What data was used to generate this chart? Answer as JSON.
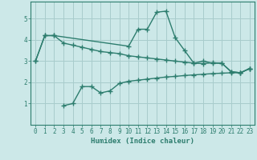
{
  "line1": {
    "x": [
      0,
      1,
      2,
      3,
      4,
      5,
      6,
      7,
      8,
      9,
      10,
      11,
      12,
      13,
      14,
      15,
      16,
      17,
      18,
      19,
      20,
      21,
      22,
      23
    ],
    "y": [
      3.0,
      4.2,
      4.2,
      3.85,
      3.75,
      3.65,
      3.55,
      3.45,
      3.4,
      3.35,
      3.25,
      3.2,
      3.15,
      3.1,
      3.05,
      3.0,
      2.95,
      2.9,
      2.88,
      2.92,
      2.9,
      2.5,
      2.45,
      2.65
    ]
  },
  "line2": {
    "x": [
      0,
      1,
      2,
      10,
      11,
      12,
      13,
      14,
      15,
      16,
      17,
      18,
      19,
      20,
      21,
      22,
      23
    ],
    "y": [
      3.0,
      4.2,
      4.2,
      3.7,
      4.5,
      4.5,
      5.3,
      5.35,
      4.1,
      3.5,
      2.9,
      3.0,
      2.9,
      2.9,
      2.5,
      2.45,
      2.65
    ]
  },
  "line3": {
    "x": [
      3,
      4,
      5,
      6,
      7,
      8,
      9,
      10,
      11,
      12,
      13,
      14,
      15,
      16,
      17,
      18,
      19,
      20,
      21,
      22,
      23
    ],
    "y": [
      0.9,
      1.0,
      1.8,
      1.8,
      1.5,
      1.6,
      1.95,
      2.05,
      2.1,
      2.15,
      2.2,
      2.25,
      2.28,
      2.32,
      2.35,
      2.38,
      2.41,
      2.43,
      2.45,
      2.45,
      2.65
    ]
  },
  "color": "#2d7d6e",
  "bg_color": "#cce8e8",
  "grid_color": "#a8cccc",
  "xlabel": "Humidex (Indice chaleur)",
  "xlim": [
    -0.5,
    23.5
  ],
  "ylim": [
    0,
    5.8
  ],
  "yticks": [
    1,
    2,
    3,
    4,
    5
  ],
  "xticks": [
    0,
    1,
    2,
    3,
    4,
    5,
    6,
    7,
    8,
    9,
    10,
    11,
    12,
    13,
    14,
    15,
    16,
    17,
    18,
    19,
    20,
    21,
    22,
    23
  ],
  "marker": "+",
  "markersize": 4,
  "linewidth": 1.0
}
